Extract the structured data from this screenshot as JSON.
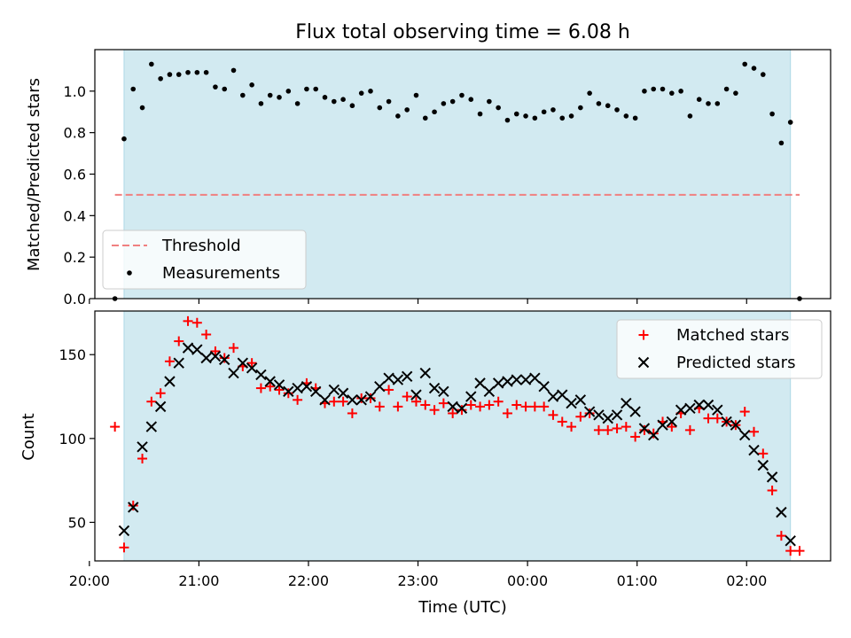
{
  "title": "Flux total observing time = 6.08 h",
  "colors": {
    "shade": "#add8e6",
    "threshold": "#f08080",
    "matched": "#ff0000",
    "predicted": "#000000",
    "measurement": "#000000"
  },
  "chart_data": [
    {
      "type": "scatter",
      "ylabel": "Matched/Predicted stars",
      "ylim": [
        0,
        1.2
      ],
      "yticks": [
        "0.0",
        "0.2",
        "0.4",
        "0.6",
        "0.8",
        "1.0"
      ],
      "xlim": [
        "20:03",
        "02:46"
      ],
      "grid": false,
      "legend_position": "lower-left",
      "legend": {
        "threshold": "Threshold",
        "measurements": "Measurements"
      },
      "threshold_line": {
        "y": 0.5,
        "x_range": [
          "20:14",
          "02:29"
        ]
      },
      "observing_window": [
        "20:19",
        "02:24"
      ],
      "series": [
        {
          "name": "Measurements",
          "points": [
            [
              "20:14",
              0.0
            ],
            [
              "20:19",
              0.77
            ],
            [
              "20:24",
              1.01
            ],
            [
              "20:29",
              0.92
            ],
            [
              "20:34",
              1.13
            ],
            [
              "20:39",
              1.06
            ],
            [
              "20:44",
              1.08
            ],
            [
              "20:49",
              1.08
            ],
            [
              "20:54",
              1.09
            ],
            [
              "20:59",
              1.09
            ],
            [
              "21:04",
              1.09
            ],
            [
              "21:09",
              1.02
            ],
            [
              "21:14",
              1.01
            ],
            [
              "21:19",
              1.1
            ],
            [
              "21:24",
              0.98
            ],
            [
              "21:29",
              1.03
            ],
            [
              "21:34",
              0.94
            ],
            [
              "21:39",
              0.98
            ],
            [
              "21:44",
              0.97
            ],
            [
              "21:49",
              1.0
            ],
            [
              "21:54",
              0.94
            ],
            [
              "21:59",
              1.01
            ],
            [
              "22:04",
              1.01
            ],
            [
              "22:09",
              0.97
            ],
            [
              "22:14",
              0.95
            ],
            [
              "22:19",
              0.96
            ],
            [
              "22:24",
              0.93
            ],
            [
              "22:29",
              0.99
            ],
            [
              "22:34",
              1.0
            ],
            [
              "22:39",
              0.92
            ],
            [
              "22:44",
              0.95
            ],
            [
              "22:49",
              0.88
            ],
            [
              "22:54",
              0.91
            ],
            [
              "22:59",
              0.98
            ],
            [
              "23:04",
              0.87
            ],
            [
              "23:09",
              0.9
            ],
            [
              "23:14",
              0.94
            ],
            [
              "23:19",
              0.95
            ],
            [
              "23:24",
              0.98
            ],
            [
              "23:29",
              0.96
            ],
            [
              "23:34",
              0.89
            ],
            [
              "23:39",
              0.95
            ],
            [
              "23:44",
              0.92
            ],
            [
              "23:49",
              0.86
            ],
            [
              "23:54",
              0.89
            ],
            [
              "23:59",
              0.88
            ],
            [
              "00:04",
              0.87
            ],
            [
              "00:09",
              0.9
            ],
            [
              "00:14",
              0.91
            ],
            [
              "00:19",
              0.87
            ],
            [
              "00:24",
              0.88
            ],
            [
              "00:29",
              0.92
            ],
            [
              "00:34",
              0.99
            ],
            [
              "00:39",
              0.94
            ],
            [
              "00:44",
              0.93
            ],
            [
              "00:49",
              0.91
            ],
            [
              "00:54",
              0.88
            ],
            [
              "00:59",
              0.87
            ],
            [
              "01:04",
              1.0
            ],
            [
              "01:09",
              1.01
            ],
            [
              "01:14",
              1.01
            ],
            [
              "01:19",
              0.99
            ],
            [
              "01:24",
              1.0
            ],
            [
              "01:29",
              0.88
            ],
            [
              "01:34",
              0.96
            ],
            [
              "01:39",
              0.94
            ],
            [
              "01:44",
              0.94
            ],
            [
              "01:49",
              1.01
            ],
            [
              "01:54",
              0.99
            ],
            [
              "01:59",
              1.13
            ],
            [
              "02:04",
              1.11
            ],
            [
              "02:09",
              1.08
            ],
            [
              "02:14",
              0.89
            ],
            [
              "02:19",
              0.75
            ],
            [
              "02:24",
              0.85
            ],
            [
              "02:29",
              0.0
            ]
          ]
        }
      ]
    },
    {
      "type": "scatter",
      "xlabel": "Time (UTC)",
      "ylabel": "Count",
      "ylim": [
        27,
        176
      ],
      "yticks": [
        "50",
        "100",
        "150"
      ],
      "xlim": [
        "20:03",
        "02:46"
      ],
      "xticks": [
        "20:00",
        "21:00",
        "22:00",
        "23:00",
        "00:00",
        "01:00",
        "02:00"
      ],
      "grid": false,
      "legend_position": "upper-right",
      "observing_window": [
        "20:19",
        "02:24"
      ],
      "series": [
        {
          "name": "Matched stars",
          "points": [
            [
              "20:14",
              107
            ],
            [
              "20:19",
              35
            ],
            [
              "20:24",
              60
            ],
            [
              "20:29",
              88
            ],
            [
              "20:34",
              122
            ],
            [
              "20:39",
              127
            ],
            [
              "20:44",
              146
            ],
            [
              "20:49",
              158
            ],
            [
              "20:54",
              170
            ],
            [
              "20:59",
              169
            ],
            [
              "21:04",
              162
            ],
            [
              "21:09",
              152
            ],
            [
              "21:14",
              148
            ],
            [
              "21:19",
              154
            ],
            [
              "21:24",
              143
            ],
            [
              "21:29",
              145
            ],
            [
              "21:34",
              130
            ],
            [
              "21:39",
              131
            ],
            [
              "21:44",
              129
            ],
            [
              "21:49",
              127
            ],
            [
              "21:54",
              123
            ],
            [
              "21:59",
              133
            ],
            [
              "22:04",
              130
            ],
            [
              "22:09",
              121
            ],
            [
              "22:14",
              122
            ],
            [
              "22:19",
              122
            ],
            [
              "22:24",
              115
            ],
            [
              "22:29",
              124
            ],
            [
              "22:34",
              124
            ],
            [
              "22:39",
              119
            ],
            [
              "22:44",
              129
            ],
            [
              "22:49",
              119
            ],
            [
              "22:54",
              125
            ],
            [
              "22:59",
              122
            ],
            [
              "23:04",
              120
            ],
            [
              "23:09",
              117
            ],
            [
              "23:14",
              121
            ],
            [
              "23:19",
              115
            ],
            [
              "23:24",
              117
            ],
            [
              "23:29",
              120
            ],
            [
              "23:34",
              119
            ],
            [
              "23:39",
              120
            ],
            [
              "23:44",
              122
            ],
            [
              "23:49",
              115
            ],
            [
              "23:54",
              120
            ],
            [
              "23:59",
              119
            ],
            [
              "00:04",
              119
            ],
            [
              "00:09",
              119
            ],
            [
              "00:14",
              114
            ],
            [
              "00:19",
              110
            ],
            [
              "00:24",
              107
            ],
            [
              "00:29",
              113
            ],
            [
              "00:34",
              115
            ],
            [
              "00:39",
              105
            ],
            [
              "00:44",
              105
            ],
            [
              "00:49",
              106
            ],
            [
              "00:54",
              107
            ],
            [
              "00:59",
              101
            ],
            [
              "01:04",
              105
            ],
            [
              "01:09",
              103
            ],
            [
              "01:14",
              110
            ],
            [
              "01:19",
              107
            ],
            [
              "01:24",
              115
            ],
            [
              "01:29",
              105
            ],
            [
              "01:34",
              118
            ],
            [
              "01:39",
              112
            ],
            [
              "01:44",
              112
            ],
            [
              "01:49",
              110
            ],
            [
              "01:54",
              108
            ],
            [
              "01:59",
              116
            ],
            [
              "02:04",
              104
            ],
            [
              "02:09",
              91
            ],
            [
              "02:14",
              69
            ],
            [
              "02:19",
              42
            ],
            [
              "02:24",
              33
            ],
            [
              "02:29",
              33
            ]
          ]
        },
        {
          "name": "Predicted stars",
          "points": [
            [
              "20:19",
              45
            ],
            [
              "20:24",
              59
            ],
            [
              "20:29",
              95
            ],
            [
              "20:34",
              107
            ],
            [
              "20:39",
              119
            ],
            [
              "20:44",
              134
            ],
            [
              "20:49",
              145
            ],
            [
              "20:54",
              154
            ],
            [
              "20:59",
              153
            ],
            [
              "21:04",
              148
            ],
            [
              "21:09",
              149
            ],
            [
              "21:14",
              147
            ],
            [
              "21:19",
              139
            ],
            [
              "21:24",
              145
            ],
            [
              "21:29",
              142
            ],
            [
              "21:34",
              138
            ],
            [
              "21:39",
              134
            ],
            [
              "21:44",
              132
            ],
            [
              "21:49",
              128
            ],
            [
              "21:54",
              130
            ],
            [
              "21:59",
              131
            ],
            [
              "22:04",
              128
            ],
            [
              "22:09",
              123
            ],
            [
              "22:14",
              129
            ],
            [
              "22:19",
              127
            ],
            [
              "22:24",
              123
            ],
            [
              "22:29",
              123
            ],
            [
              "22:34",
              125
            ],
            [
              "22:39",
              131
            ],
            [
              "22:44",
              136
            ],
            [
              "22:49",
              135
            ],
            [
              "22:54",
              137
            ],
            [
              "22:59",
              126
            ],
            [
              "23:04",
              139
            ],
            [
              "23:09",
              130
            ],
            [
              "23:14",
              128
            ],
            [
              "23:19",
              119
            ],
            [
              "23:24",
              118
            ],
            [
              "23:29",
              125
            ],
            [
              "23:34",
              133
            ],
            [
              "23:39",
              128
            ],
            [
              "23:44",
              133
            ],
            [
              "23:49",
              134
            ],
            [
              "23:54",
              135
            ],
            [
              "23:59",
              135
            ],
            [
              "00:04",
              136
            ],
            [
              "00:09",
              131
            ],
            [
              "00:14",
              125
            ],
            [
              "00:19",
              126
            ],
            [
              "00:24",
              121
            ],
            [
              "00:29",
              123
            ],
            [
              "00:34",
              116
            ],
            [
              "00:39",
              114
            ],
            [
              "00:44",
              112
            ],
            [
              "00:49",
              114
            ],
            [
              "00:54",
              121
            ],
            [
              "00:59",
              116
            ],
            [
              "01:04",
              106
            ],
            [
              "01:09",
              102
            ],
            [
              "01:14",
              108
            ],
            [
              "01:19",
              110
            ],
            [
              "01:24",
              117
            ],
            [
              "01:29",
              118
            ],
            [
              "01:34",
              120
            ],
            [
              "01:39",
              120
            ],
            [
              "01:44",
              117
            ],
            [
              "01:49",
              110
            ],
            [
              "01:54",
              108
            ],
            [
              "01:59",
              102
            ],
            [
              "02:04",
              93
            ],
            [
              "02:09",
              84
            ],
            [
              "02:14",
              77
            ],
            [
              "02:19",
              56
            ],
            [
              "02:24",
              39
            ]
          ]
        }
      ]
    }
  ]
}
